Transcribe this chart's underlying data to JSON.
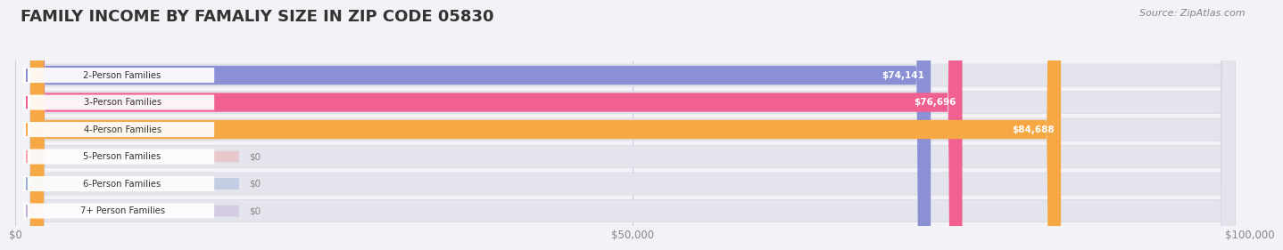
{
  "title": "FAMILY INCOME BY FAMALIY SIZE IN ZIP CODE 05830",
  "source": "Source: ZipAtlas.com",
  "categories": [
    "2-Person Families",
    "3-Person Families",
    "4-Person Families",
    "5-Person Families",
    "6-Person Families",
    "7+ Person Families"
  ],
  "values": [
    74141,
    76696,
    84688,
    0,
    0,
    0
  ],
  "bar_colors": [
    "#8b8fd4",
    "#f06090",
    "#f5a843",
    "#f0a8a8",
    "#9ab0d8",
    "#c4aed8"
  ],
  "label_circle_colors": [
    "#8b8fd4",
    "#f06090",
    "#f5a843",
    "#f0a8a8",
    "#9ab0d8",
    "#c4aed8"
  ],
  "value_labels": [
    "$74,141",
    "$76,696",
    "$84,688",
    "$0",
    "$0",
    "$0"
  ],
  "xlim_max": 100000,
  "xticks": [
    0,
    50000,
    100000
  ],
  "xtick_labels": [
    "$0",
    "$50,000",
    "$100,000"
  ],
  "background_color": "#f2f2f7",
  "bar_bg_color": "#e4e4ec",
  "bar_bg_border_color": "#d8d8e4",
  "title_fontsize": 13,
  "source_fontsize": 8
}
